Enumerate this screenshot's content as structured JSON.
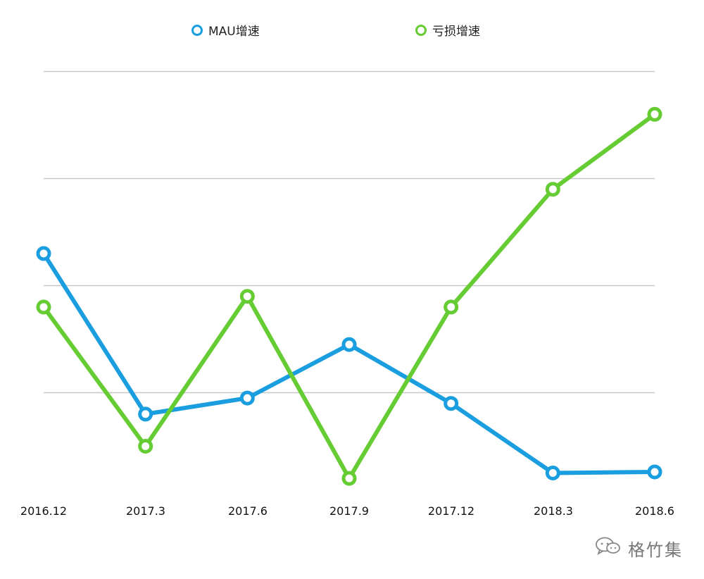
{
  "chart_data": {
    "type": "line",
    "title": "",
    "xlabel": "",
    "ylabel": "",
    "categories": [
      "2016.12",
      "2017.3",
      "2017.6",
      "2017.9",
      "2017.12",
      "2018.3",
      "2018.6"
    ],
    "ylim": [
      0,
      4
    ],
    "grid": true,
    "legend_position": "top-center",
    "series": [
      {
        "name": "MAU增速",
        "color": "#1a9ee0",
        "values": [
          2.3,
          0.8,
          0.95,
          1.45,
          0.9,
          0.25,
          0.26
        ]
      },
      {
        "name": "亏损增速",
        "color": "#66cc33",
        "values": [
          1.8,
          0.5,
          1.9,
          0.2,
          1.8,
          2.9,
          3.6
        ]
      }
    ]
  },
  "watermark": {
    "text": "格竹集",
    "icon": "wechat-icon"
  }
}
